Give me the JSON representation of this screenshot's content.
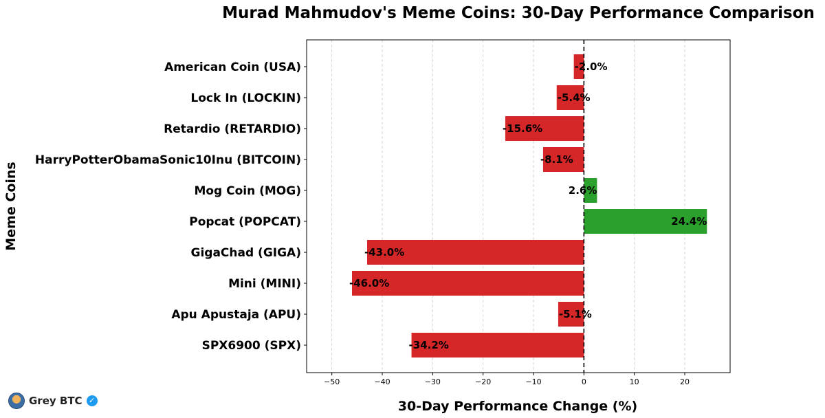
{
  "chart_data": {
    "type": "bar",
    "orientation": "horizontal",
    "title": "Murad Mahmudov's Meme Coins: 30-Day Performance Comparison",
    "xlabel": "30-Day Performance Change (%)",
    "ylabel": "Meme Coins",
    "xlim": [
      -55,
      29
    ],
    "xticks": [
      -50,
      -40,
      -30,
      -20,
      -10,
      0,
      10,
      20
    ],
    "xtick_labels": [
      "−50",
      "−40",
      "−30",
      "−20",
      "−10",
      "0",
      "10",
      "20"
    ],
    "grid": "vertical dashed",
    "zero_line": "dashed",
    "categories": [
      "American Coin (USA)",
      "Lock In (LOCKIN)",
      "Retardio (RETARDIO)",
      "HarryPotterObamaSonic10Inu (BITCOIN)",
      "Mog Coin (MOG)",
      "Popcat (POPCAT)",
      "GigaChad (GIGA)",
      "Mini (MINI)",
      "Apu Apustaja (APU)",
      "SPX6900 (SPX)"
    ],
    "values": [
      -2.0,
      -5.4,
      -15.6,
      -8.1,
      2.6,
      24.4,
      -43.0,
      -46.0,
      -5.1,
      -34.2
    ],
    "value_labels": [
      "-2.0%",
      "-5.4%",
      "-15.6%",
      "-8.1%",
      "2.6%",
      "24.4%",
      "-43.0%",
      "-46.0%",
      "-5.1%",
      "-34.2%"
    ],
    "colors": {
      "positive": "#2ca02c",
      "negative": "#d62728"
    }
  },
  "watermark": {
    "name": "Grey BTC",
    "verified_icon": "verified-badge-icon",
    "avatar_icon": "avatar-icon"
  }
}
